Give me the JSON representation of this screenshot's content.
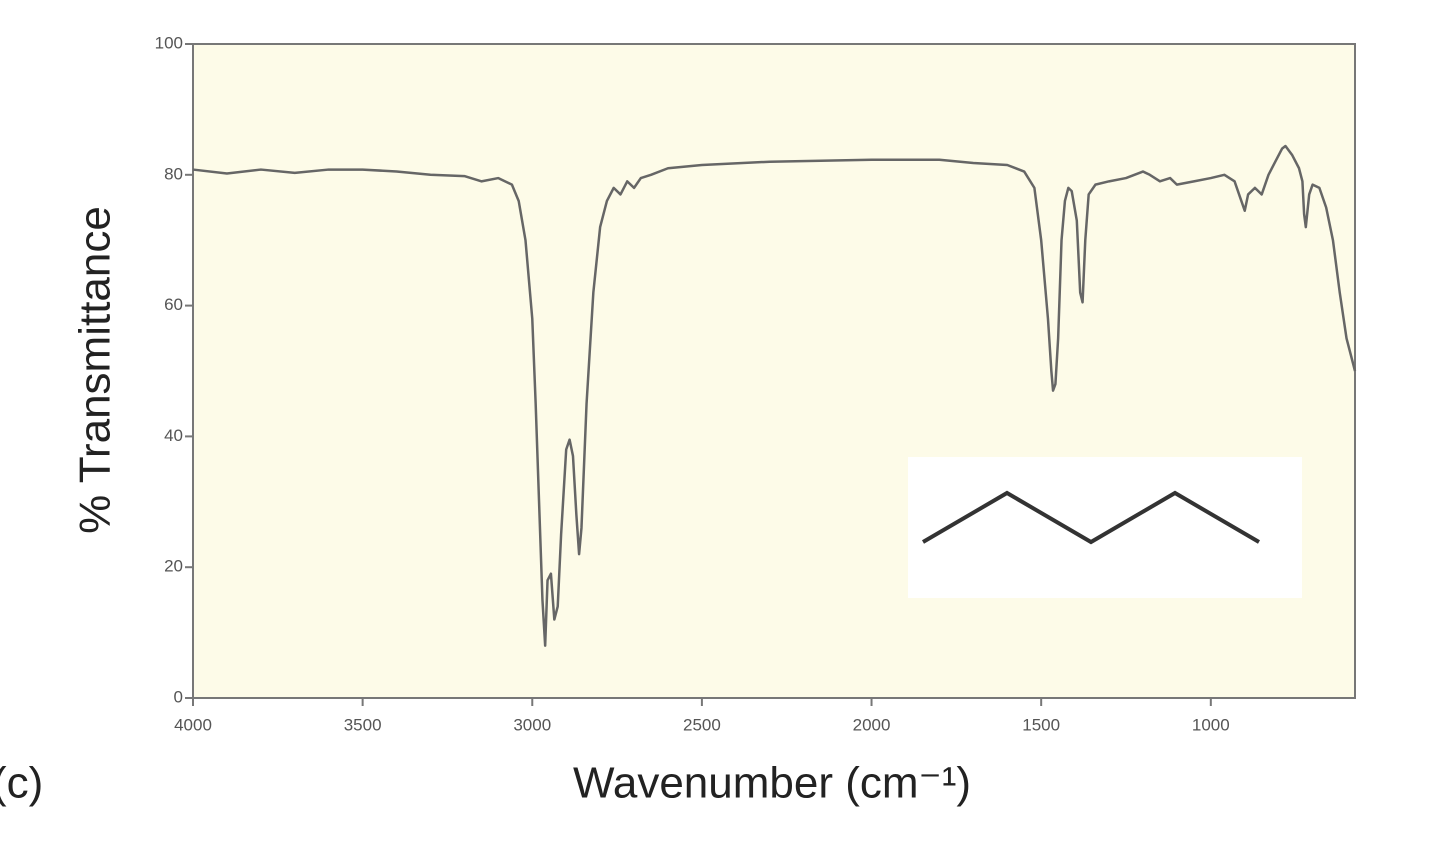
{
  "chart_data": {
    "type": "line",
    "panel_label": "(c)",
    "x_label": "Wavenumber (cm⁻¹)",
    "y_label": "% Transmittance",
    "color": "#666666",
    "xlim": [
      4000,
      575
    ],
    "xticks": [
      4000,
      3500,
      3000,
      2500,
      2000,
      1500,
      1000
    ],
    "ylim": [
      0,
      100
    ],
    "yticks": [
      0,
      20,
      40,
      60,
      80,
      100
    ],
    "x": [
      4000,
      3900,
      3800,
      3700,
      3600,
      3500,
      3400,
      3300,
      3200,
      3150,
      3100,
      3060,
      3040,
      3020,
      3000,
      2990,
      2980,
      2970,
      2962,
      2955,
      2945,
      2935,
      2925,
      2915,
      2900,
      2890,
      2880,
      2870,
      2862,
      2855,
      2840,
      2820,
      2800,
      2780,
      2760,
      2740,
      2720,
      2700,
      2680,
      2650,
      2600,
      2500,
      2300,
      2000,
      1800,
      1700,
      1600,
      1550,
      1520,
      1500,
      1480,
      1470,
      1465,
      1458,
      1450,
      1440,
      1430,
      1420,
      1410,
      1395,
      1385,
      1378,
      1370,
      1360,
      1340,
      1300,
      1250,
      1200,
      1180,
      1150,
      1120,
      1100,
      1050,
      1000,
      960,
      930,
      910,
      900,
      890,
      870,
      850,
      830,
      810,
      790,
      780,
      760,
      740,
      730,
      725,
      720,
      710,
      700,
      680,
      660,
      640,
      620,
      600,
      575
    ],
    "values": [
      80.8,
      80.2,
      80.8,
      80.3,
      80.8,
      80.8,
      80.5,
      80.0,
      79.8,
      79,
      79.5,
      78.5,
      76,
      70,
      58,
      45,
      30,
      15,
      8,
      18,
      19,
      12,
      14,
      25,
      38,
      39.5,
      37,
      28,
      22,
      26,
      45,
      62,
      72,
      76,
      78,
      77,
      79,
      78,
      79.5,
      80,
      81,
      81.5,
      82,
      82.3,
      82.3,
      81.8,
      81.5,
      80.5,
      78,
      70,
      58,
      50,
      47,
      48,
      55,
      70,
      76,
      78,
      77.5,
      73,
      62,
      60.5,
      70,
      77,
      78.5,
      79,
      79.5,
      80.5,
      80,
      79,
      79.5,
      78.5,
      79,
      79.5,
      80,
      79,
      76,
      74.5,
      77,
      78,
      77,
      80,
      82,
      84,
      84.4,
      83,
      81,
      79,
      74,
      72,
      77,
      78.5,
      78,
      75,
      70,
      62,
      55,
      50
    ]
  }
}
